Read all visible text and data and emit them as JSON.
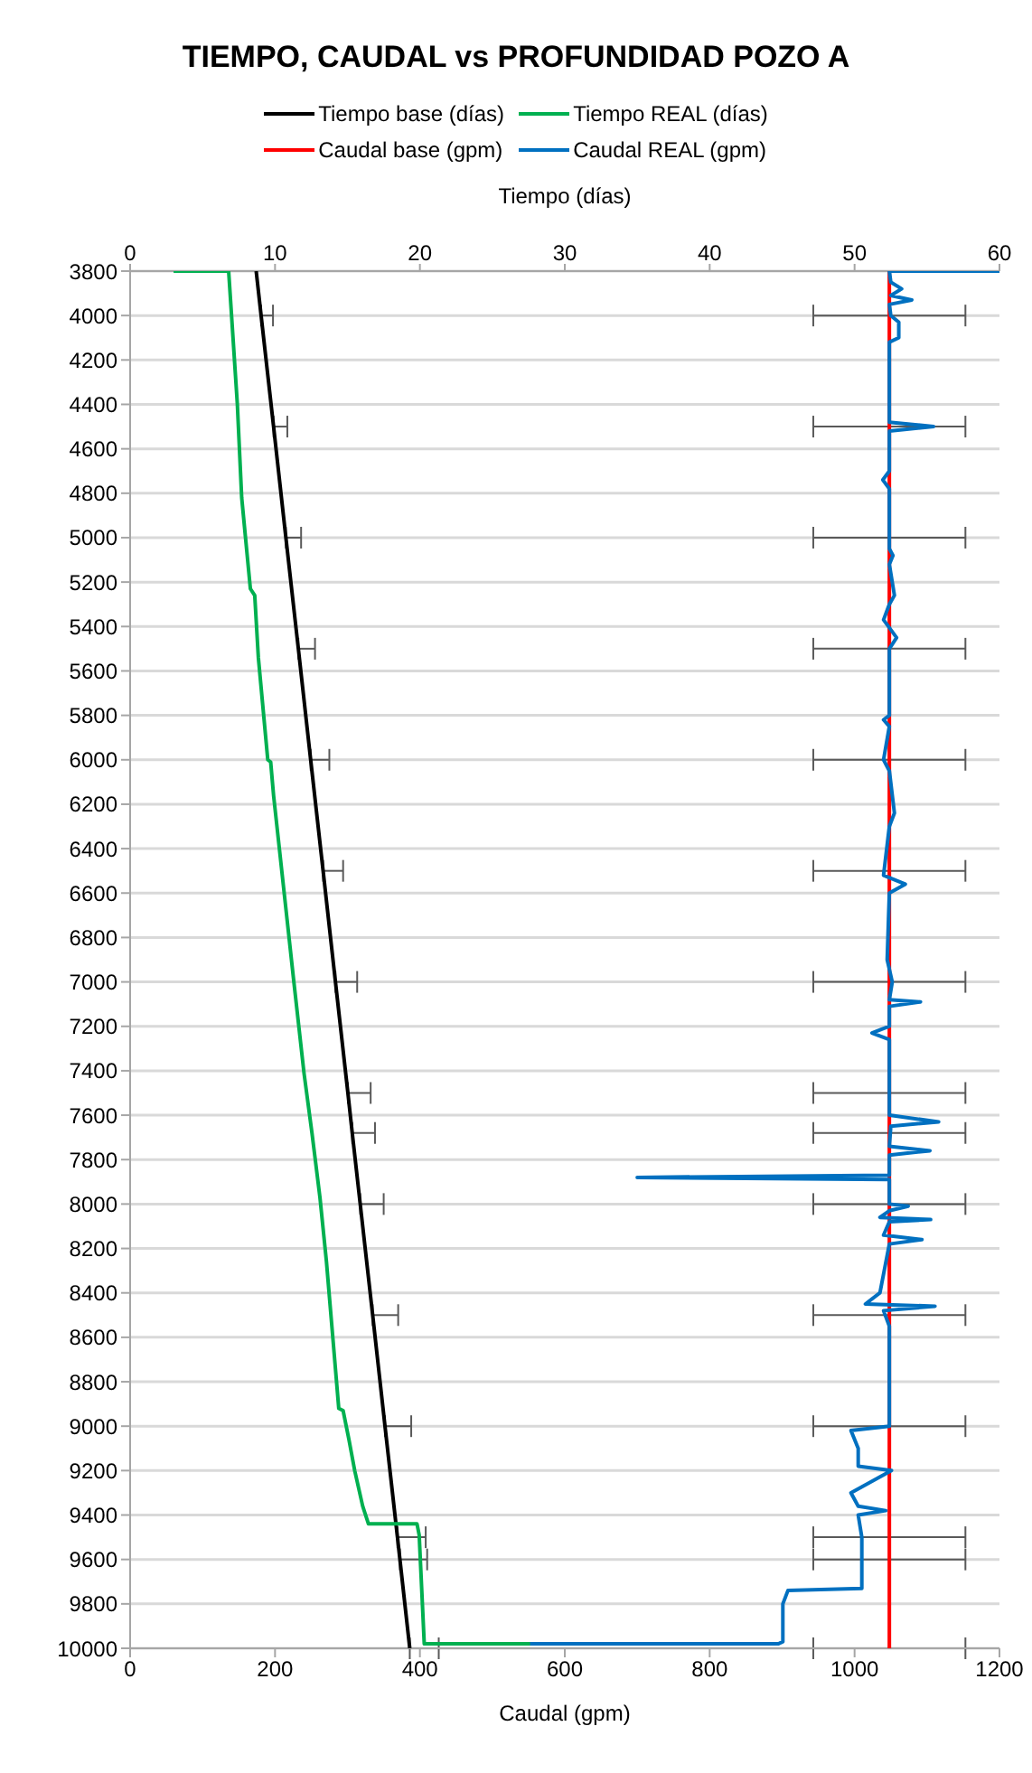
{
  "chart_data": {
    "type": "line",
    "title": "TIEMPO, CAUDAL vs PROFUNDIDAD POZO A",
    "xlabel": "Caudal (gpm)",
    "x2label": "Tiempo (días)",
    "xlim": [
      0,
      1200
    ],
    "xticks": [
      0,
      200,
      400,
      600,
      800,
      1000,
      1200
    ],
    "x2lim": [
      0,
      60
    ],
    "x2ticks": [
      0,
      10,
      20,
      30,
      40,
      50,
      60
    ],
    "ylim": [
      10000,
      3800
    ],
    "yticks": [
      3800,
      4000,
      4200,
      4400,
      4600,
      4800,
      5000,
      5200,
      5400,
      5600,
      5800,
      6000,
      6200,
      6400,
      6600,
      6800,
      7000,
      7200,
      7400,
      7600,
      7800,
      8000,
      8200,
      8400,
      8600,
      8800,
      9000,
      9200,
      9400,
      9600,
      9800,
      10000
    ],
    "grid": "y",
    "legend": "top",
    "series": [
      {
        "name": "Tiempo base (días)",
        "color": "#000000",
        "axis": "x2",
        "x": [
          8.7,
          9.04,
          9.9,
          10.75,
          11.61,
          12.46,
          13.32,
          14.17,
          15.03,
          15.33,
          15.88,
          16.74,
          17.59,
          18.45,
          18.62,
          19.3
        ],
        "values": [
          3800,
          4000,
          4500,
          5000,
          5500,
          6000,
          6500,
          7000,
          7500,
          7680,
          8000,
          8500,
          9000,
          9500,
          9600,
          10000
        ],
        "xerrors": [
          null,
          [
            9.04,
            9.86
          ],
          [
            9.9,
            10.85
          ],
          [
            10.75,
            11.8
          ],
          [
            11.61,
            12.76
          ],
          [
            12.46,
            13.75
          ],
          [
            13.32,
            14.7
          ],
          [
            14.17,
            15.67
          ],
          [
            15.03,
            16.6
          ],
          [
            15.33,
            16.9
          ],
          [
            15.88,
            17.5
          ],
          [
            16.74,
            18.5
          ],
          [
            17.59,
            19.4
          ],
          [
            18.45,
            20.4
          ],
          [
            18.62,
            20.5
          ],
          [
            19.3,
            21.3
          ]
        ]
      },
      {
        "name": "Tiempo REAL (días)",
        "color": "#00b050",
        "axis": "x2",
        "x": [
          3.0,
          6.8,
          7.4,
          7.7,
          8.3,
          8.6,
          8.85,
          9.5,
          9.7,
          9.9,
          11.3,
          12.0,
          12.55,
          13.1,
          13.55,
          14.4,
          14.7,
          15.1,
          15.5,
          16.05,
          16.45,
          19.8,
          19.95,
          20.3,
          28.5
        ],
        "values": [
          3800,
          3800,
          4400,
          4820,
          5230,
          5260,
          5540,
          6000,
          6010,
          6160,
          7000,
          7410,
          7680,
          7970,
          8260,
          8920,
          8930,
          9060,
          9200,
          9360,
          9440,
          9440,
          9490,
          9980,
          9980
        ]
      },
      {
        "name": "Caudal base (gpm)",
        "color": "#ff0000",
        "x": [
          1048,
          1048,
          1048,
          1048,
          1048,
          1048,
          1048,
          1048,
          1048,
          1048,
          1048,
          1048,
          1048,
          1048,
          1048,
          1048
        ],
        "values": [
          3800,
          4000,
          4500,
          5000,
          5500,
          6000,
          6500,
          7000,
          7500,
          7680,
          8000,
          8500,
          9000,
          9500,
          9600,
          10000
        ],
        "xerrors": [
          null,
          105,
          105,
          105,
          105,
          105,
          105,
          105,
          105,
          105,
          105,
          105,
          105,
          105,
          105,
          105
        ]
      },
      {
        "name": "Caudal REAL (gpm)",
        "color": "#0070c0",
        "x": [
          1200,
          1048,
          1050,
          1065,
          1050,
          1079,
          1048,
          1050,
          1061,
          1061,
          1048,
          1048,
          1109,
          1048,
          1048,
          1039,
          1048,
          1048,
          1053,
          1048,
          1055,
          1048,
          1040,
          1058,
          1048,
          1048,
          1040,
          1048,
          1040,
          1048,
          1055,
          1048,
          1040,
          1070,
          1048,
          1045,
          1052,
          1048,
          1091,
          1048,
          1048,
          1024,
          1048,
          1048,
          1116,
          1050,
          1048,
          1104,
          1048,
          1048,
          700,
          1048,
          1048,
          1074,
          1048,
          1035,
          1105,
          1048,
          1040,
          1093,
          1048,
          1035,
          1015,
          1111,
          1040,
          1048,
          1048,
          995,
          1005,
          1005,
          1051,
          995,
          1005,
          1043,
          1005,
          1010,
          1010,
          908,
          901,
          901,
          895,
          552
        ],
        "values": [
          3800,
          3800,
          3850,
          3880,
          3910,
          3930,
          3950,
          4000,
          4030,
          4100,
          4120,
          4480,
          4500,
          4520,
          4700,
          4740,
          4780,
          5050,
          5080,
          5120,
          5260,
          5300,
          5370,
          5450,
          5500,
          5800,
          5820,
          5850,
          6000,
          6050,
          6240,
          6300,
          6520,
          6560,
          6600,
          6900,
          7000,
          7080,
          7090,
          7110,
          7200,
          7230,
          7260,
          7600,
          7630,
          7650,
          7740,
          7760,
          7780,
          7870,
          7880,
          7890,
          8000,
          8010,
          8030,
          8060,
          8070,
          8080,
          8140,
          8160,
          8180,
          8400,
          8450,
          8460,
          8480,
          8550,
          9000,
          9020,
          9100,
          9180,
          9200,
          9300,
          9360,
          9380,
          9400,
          9500,
          9730,
          9740,
          9800,
          9970,
          9980,
          9980
        ]
      }
    ]
  }
}
